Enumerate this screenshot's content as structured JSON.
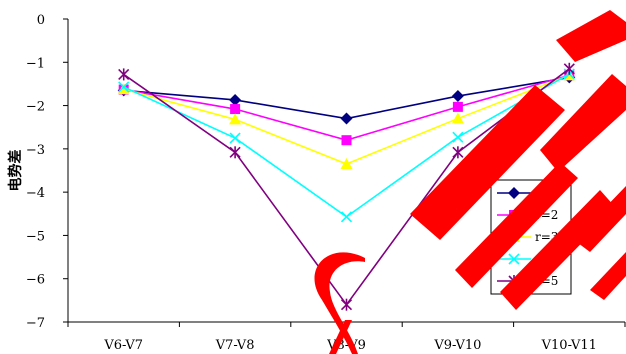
{
  "chart_data": {
    "type": "line",
    "title": "",
    "xlabel": "",
    "ylabel": "电势差",
    "categories": [
      "V6-V7",
      "V7-V8",
      "V8-V9",
      "V9-V10",
      "V10-V11"
    ],
    "ylim": [
      -7,
      0
    ],
    "yticks": [
      "0",
      "−1",
      "−2",
      "−3",
      "−4",
      "−5",
      "−6",
      "−7"
    ],
    "grid": false,
    "legend_position": "right",
    "series": [
      {
        "name": "r=1",
        "color": "#000080",
        "marker": "diamond",
        "values": [
          -1.65,
          -1.87,
          -2.3,
          -1.78,
          -1.35
        ]
      },
      {
        "name": "r=2",
        "color": "#FF00FF",
        "marker": "square",
        "values": [
          -1.63,
          -2.08,
          -2.8,
          -2.03,
          -1.3
        ]
      },
      {
        "name": "r=3",
        "color": "#FFFF00",
        "marker": "triangle",
        "values": [
          -1.62,
          -2.32,
          -3.35,
          -2.3,
          -1.3
        ]
      },
      {
        "name": "r=4",
        "color": "#00FFFF",
        "marker": "x",
        "values": [
          -1.57,
          -2.75,
          -4.57,
          -2.73,
          -1.27
        ]
      },
      {
        "name": "r=5",
        "color": "#800080",
        "marker": "star",
        "values": [
          -1.28,
          -3.08,
          -6.6,
          -3.08,
          -1.15
        ]
      }
    ]
  }
}
